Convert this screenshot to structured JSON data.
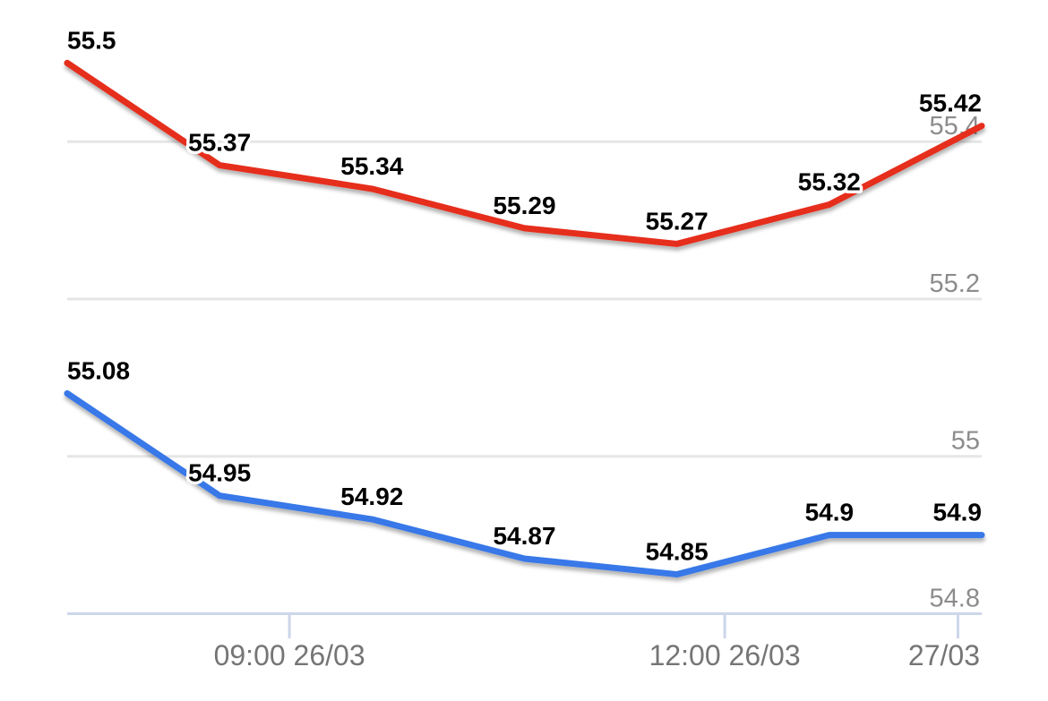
{
  "chart_data": {
    "type": "line",
    "title": "",
    "xlabel": "",
    "ylabel": "",
    "grid": true,
    "legend": "none",
    "background_color": "#ffffff",
    "ylim": [
      54.8,
      55.58
    ],
    "series": [
      {
        "name": "upper-price-series",
        "color": "#e62d1d",
        "values": [
          55.5,
          55.37,
          55.34,
          55.29,
          55.27,
          55.32,
          55.42
        ],
        "labels": [
          "55.5",
          "55.37",
          "55.34",
          "55.29",
          "55.27",
          "55.32",
          "55.42"
        ]
      },
      {
        "name": "lower-price-series",
        "color": "#3778e8",
        "values": [
          55.08,
          54.95,
          54.92,
          54.87,
          54.85,
          54.9,
          54.9
        ],
        "labels": [
          "55.08",
          "54.95",
          "54.92",
          "54.87",
          "54.85",
          "54.9",
          "54.9"
        ]
      }
    ],
    "y_gridlines": [
      {
        "label": "55.4",
        "value": 55.4
      },
      {
        "label": "55.2",
        "value": 55.2
      },
      {
        "label": "55",
        "value": 55.0
      },
      {
        "label": "54.8",
        "value": 54.8
      }
    ],
    "x_ticks": [
      {
        "label": "09:00 26/03",
        "pos": 0.243
      },
      {
        "label": "12:00 26/03",
        "pos": 0.719
      },
      {
        "label": "27/03",
        "pos": 0.974
      }
    ],
    "colors": {
      "grid": "#e6e6e6",
      "axis": "#ccd6eb",
      "x_label": "#757575",
      "y_label": "#8c8c8c",
      "data_label": "#000000"
    }
  }
}
